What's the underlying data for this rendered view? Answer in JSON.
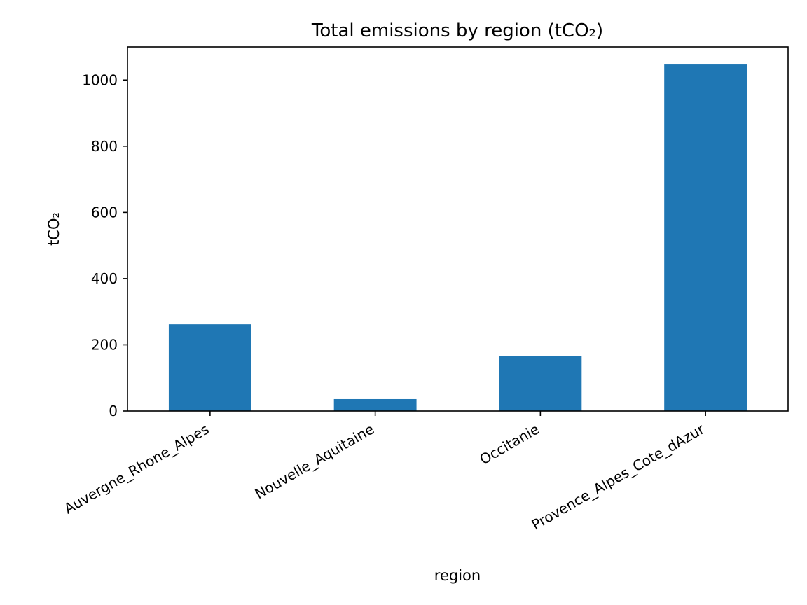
{
  "chart_data": {
    "type": "bar",
    "title": "Total emissions by region (tCO₂)",
    "xlabel": "region",
    "ylabel": "tCO₂",
    "categories": [
      "Auvergne_Rhone_Alpes",
      "Nouvelle_Aquitaine",
      "Occitanie",
      "Provence_Alpes_Cote_dAzur"
    ],
    "values": [
      262,
      36,
      165,
      1047
    ],
    "ylim": [
      0,
      1100
    ],
    "yticks": [
      0,
      200,
      400,
      600,
      800,
      1000
    ],
    "grid": false,
    "bar_color": "#1f77b4"
  }
}
